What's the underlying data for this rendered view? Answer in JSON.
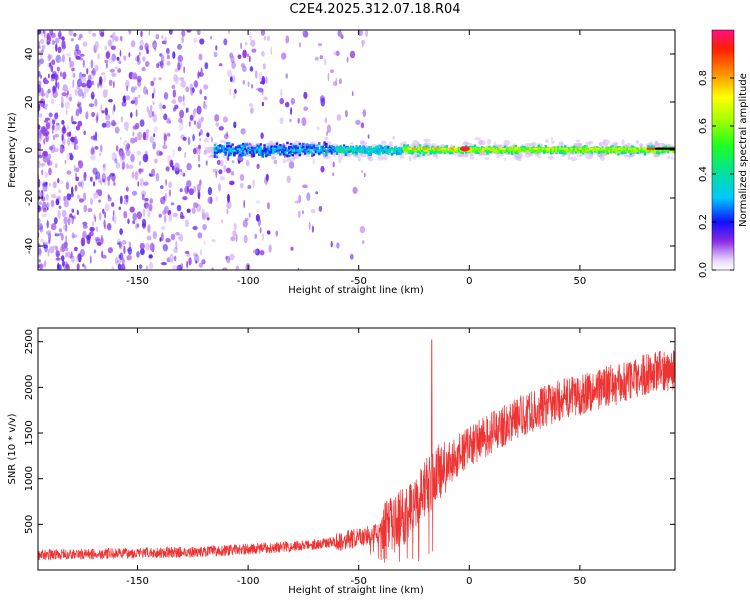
{
  "title": "C2E4.2025.312.07.18.R04",
  "chart_data": [
    {
      "type": "heatmap",
      "xlabel": "Height of straight line (km)",
      "ylabel": "Frequency (Hz)",
      "xlim": [
        -195,
        93
      ],
      "ylim": [
        -50,
        50
      ],
      "xticks": [
        -150,
        -100,
        -50,
        0,
        50
      ],
      "yticks": [
        -40,
        -20,
        0,
        20,
        40
      ],
      "colorbar": {
        "label": "Normalized spectral amplitude",
        "range": [
          0,
          1
        ],
        "ticks": [
          0.0,
          0.2,
          0.4,
          0.6,
          0.8
        ]
      },
      "ridge": {
        "frequency_hz": 0,
        "strong_from_km": -30,
        "band_start_km": -115
      }
    },
    {
      "type": "line",
      "xlabel": "Height of straight line (km)",
      "ylabel": "SNR (10 * v/v)",
      "xlim": [
        -195,
        93
      ],
      "ylim": [
        0,
        2650
      ],
      "xticks": [
        -150,
        -100,
        -50,
        0,
        50
      ],
      "yticks": [
        500,
        1000,
        1500,
        2000,
        2500
      ],
      "color": "#ee3333",
      "series": [
        {
          "x": [
            -195,
            -180,
            -160,
            -140,
            -120,
            -100,
            -80,
            -70,
            -60,
            -50,
            -40,
            -35,
            -30,
            -20,
            -10,
            0,
            10,
            20,
            30,
            40,
            50,
            60,
            70,
            80,
            93
          ],
          "y": [
            170,
            170,
            180,
            190,
            200,
            230,
            260,
            280,
            310,
            350,
            420,
            480,
            580,
            900,
            1150,
            1350,
            1500,
            1650,
            1750,
            1850,
            1920,
            2000,
            2050,
            2150,
            2200
          ]
        }
      ],
      "annotations": {
        "spike_x": -17,
        "spike_y": 2520
      }
    }
  ]
}
